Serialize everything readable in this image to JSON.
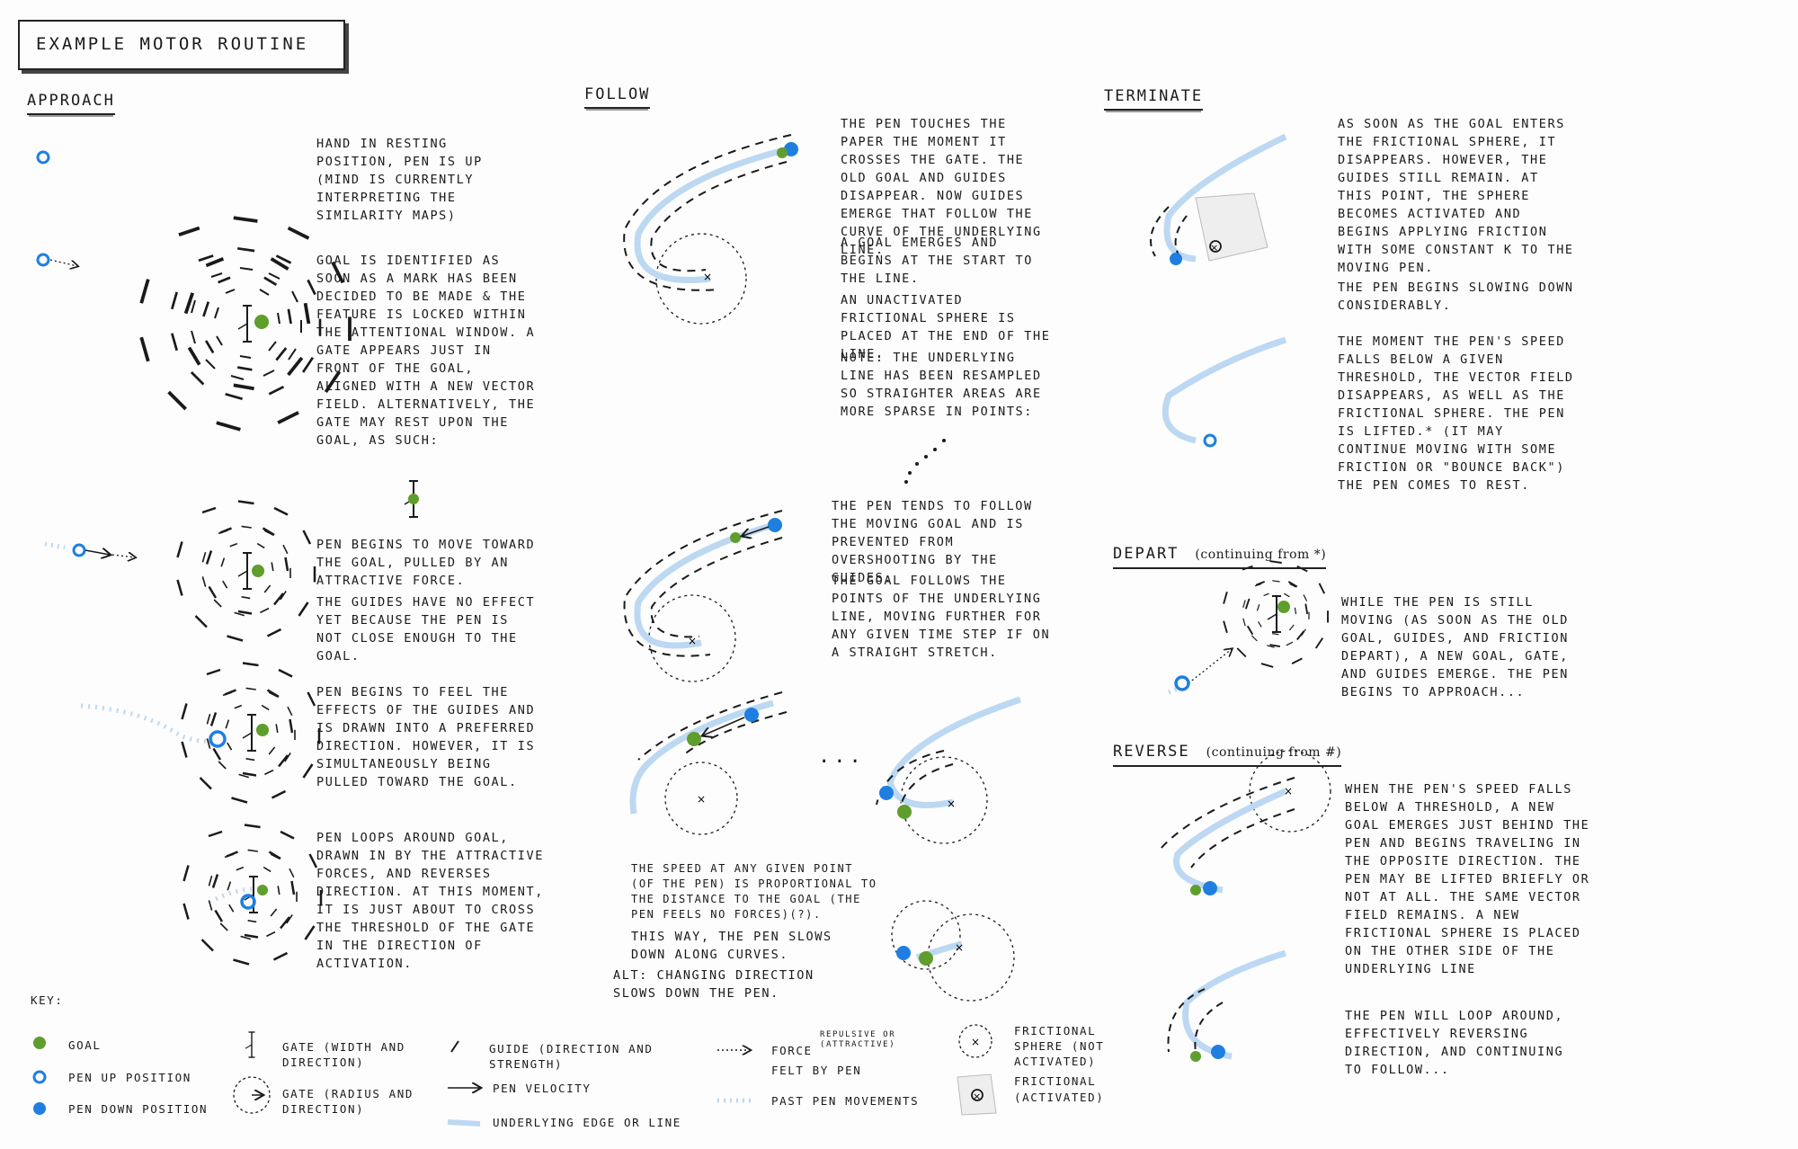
{
  "title": "EXAMPLE MOTOR ROUTINE",
  "sections": {
    "approach": {
      "heading": "APPROACH",
      "paragraphs": [
        "HAND IN RESTING POSITION, PEN IS UP (MIND IS CURRENTLY INTERPRETING THE SIMILARITY MAPS)",
        "GOAL IS IDENTIFIED AS SOON AS A MARK HAS BEEN DECIDED TO BE MADE & THE FEATURE IS LOCKED WITHIN THE ATTENTIONAL WINDOW. A GATE APPEARS JUST IN FRONT OF THE GOAL, ALIGNED WITH A NEW VECTOR FIELD. ALTERNATIVELY, THE GATE MAY REST UPON THE GOAL, AS SUCH:",
        "PEN BEGINS TO MOVE TOWARD THE GOAL, PULLED BY AN ATTRACTIVE FORCE.",
        "THE GUIDES HAVE NO EFFECT YET BECAUSE THE PEN IS NOT CLOSE ENOUGH TO THE GOAL.",
        "PEN BEGINS TO FEEL THE EFFECTS OF THE GUIDES AND IS DRAWN INTO A PREFERRED DIRECTION. HOWEVER, IT IS SIMULTANEOUSLY BEING PULLED TOWARD THE GOAL.",
        "PEN LOOPS AROUND GOAL, DRAWN IN BY THE ATTRACTIVE FORCES, AND REVERSES DIRECTION. AT THIS MOMENT, IT IS JUST ABOUT TO CROSS THE THRESHOLD OF THE GATE IN THE DIRECTION OF ACTIVATION."
      ]
    },
    "follow": {
      "heading": "FOLLOW",
      "paragraphs": [
        "THE PEN TOUCHES THE PAPER THE MOMENT IT CROSSES THE GATE. THE OLD GOAL AND GUIDES DISAPPEAR. NOW GUIDES EMERGE THAT FOLLOW THE CURVE OF THE UNDERLYING LINE.",
        "A GOAL EMERGES AND BEGINS AT THE START TO THE LINE.",
        "AN UNACTIVATED FRICTIONAL SPHERE IS PLACED AT THE END OF THE LINE.",
        "NOTE: THE UNDERLYING LINE HAS BEEN RESAMPLED SO STRAIGHTER AREAS ARE MORE SPARSE IN POINTS:",
        "THE PEN TENDS TO FOLLOW THE MOVING GOAL AND IS PREVENTED FROM OVERSHOOTING BY THE GUIDES.",
        "THE GOAL FOLLOWS THE POINTS OF THE UNDERLYING LINE, MOVING FURTHER FOR ANY GIVEN TIME STEP IF ON A STRAIGHT STRETCH.",
        "THE SPEED AT ANY GIVEN POINT (OF THE PEN) IS PROPORTIONAL TO THE DISTANCE TO THE GOAL (THE PEN FEELS NO FORCES)(?).",
        "THIS WAY, THE PEN SLOWS DOWN ALONG CURVES.",
        "ALT: CHANGING DIRECTION SLOWS DOWN THE PEN."
      ],
      "ellipsis": "..."
    },
    "terminate": {
      "heading": "TERMINATE",
      "paragraphs": [
        "AS SOON AS THE GOAL ENTERS THE FRICTIONAL SPHERE, IT DISAPPEARS. HOWEVER, THE GUIDES STILL REMAIN. AT THIS POINT, THE SPHERE BECOMES ACTIVATED AND BEGINS APPLYING FRICTION WITH SOME CONSTANT K TO THE MOVING PEN.",
        "THE PEN BEGINS SLOWING DOWN CONSIDERABLY.",
        "THE MOMENT THE PEN'S SPEED FALLS BELOW A GIVEN THRESHOLD, THE VECTOR FIELD DISAPPEARS, AS WELL AS THE FRICTIONAL SPHERE. THE PEN IS LIFTED.* (IT MAY CONTINUE MOVING WITH SOME FRICTION OR \"BOUNCE BACK\") THE PEN COMES TO REST."
      ]
    },
    "depart": {
      "heading": "DEPART",
      "note": "(continuing from *)",
      "paragraphs": [
        "WHILE THE PEN IS STILL MOVING (AS SOON AS THE OLD GOAL, GUIDES, AND FRICTION DEPART), A NEW GOAL, GATE, AND GUIDES EMERGE. THE PEN BEGINS TO APPROACH..."
      ]
    },
    "reverse": {
      "heading": "REVERSE",
      "note": "(continuing from #)",
      "paragraphs": [
        "WHEN THE PEN'S SPEED FALLS BELOW A THRESHOLD, A NEW GOAL EMERGES JUST BEHIND THE PEN AND BEGINS TRAVELING IN THE OPPOSITE DIRECTION. THE PEN MAY BE LIFTED BRIEFLY OR NOT AT ALL. THE SAME VECTOR FIELD REMAINS. A NEW FRICTIONAL SPHERE IS PLACED ON THE OTHER SIDE OF THE UNDERLYING LINE",
        "THE PEN WILL LOOP AROUND, EFFECTIVELY REVERSING DIRECTION, AND CONTINUING TO FOLLOW..."
      ]
    }
  },
  "key": {
    "heading": "KEY:",
    "items": {
      "goal": "GOAL",
      "pen_up": "PEN UP POSITION",
      "pen_down": "PEN DOWN POSITION",
      "gate_line": "GATE (WIDTH AND DIRECTION)",
      "gate_circle": "GATE (RADIUS AND DIRECTION)",
      "guide": "GUIDE (DIRECTION AND STRENGTH)",
      "pen_velocity": "PEN VELOCITY",
      "underlying": "UNDERLYING EDGE OR LINE",
      "force": "FORCE",
      "force_note": "REPULSIVE OR (ATTRACTIVE)",
      "force_felt": "FELT BY PEN",
      "past": "PAST PEN MOVEMENTS",
      "sphere_off": "FRICTIONAL SPHERE (NOT ACTIVATED)",
      "sphere_on_a": "FRICTIONAL",
      "sphere_on_b": "(ACTIVATED)"
    }
  },
  "colors": {
    "ink": "#1a1a1a",
    "pen_blue": "#1f7fe0",
    "goal_green": "#5f9e2c",
    "line_blue": "#bcd8f2"
  }
}
